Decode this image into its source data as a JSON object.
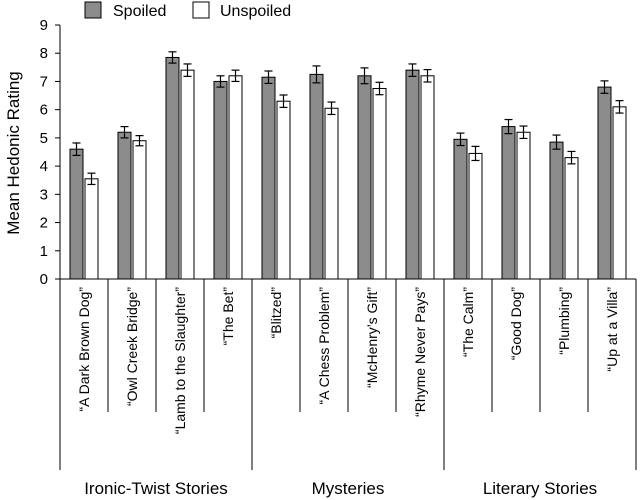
{
  "chart_data": {
    "type": "bar",
    "ylabel": "Mean Hedonic Rating",
    "ylim": [
      0,
      9
    ],
    "yticks": [
      "0",
      "1",
      "2",
      "3",
      "4",
      "5",
      "6",
      "7",
      "8",
      "9"
    ],
    "legend_placement": "top-left",
    "categories": [
      "“A Dark Brown Dog”",
      "“Owl Creek Bridge”",
      "“Lamb to the Slaughter”",
      "“The Bet”",
      "“Blitzed”",
      "“A Chess Problem”",
      "“McHenry’s Gift”",
      "“Rhyme Never Pays”",
      "“The Calm”",
      "“Good Dog”",
      "“Plumbing”",
      "“Up at a Villa”"
    ],
    "groups": [
      {
        "label": "Ironic-Twist Stories",
        "count": 4
      },
      {
        "label": "Mysteries",
        "count": 4
      },
      {
        "label": "Literary Stories",
        "count": 4
      }
    ],
    "series": [
      {
        "name": "Spoiled",
        "color": "#8c8c8c",
        "values": [
          4.6,
          5.2,
          7.85,
          7.0,
          7.15,
          7.25,
          7.2,
          7.4,
          4.95,
          5.4,
          4.85,
          6.8
        ],
        "errors": [
          0.22,
          0.2,
          0.2,
          0.2,
          0.22,
          0.3,
          0.28,
          0.22,
          0.22,
          0.25,
          0.25,
          0.22
        ]
      },
      {
        "name": "Unspoiled",
        "color": "#ffffff",
        "values": [
          3.55,
          4.9,
          7.4,
          7.2,
          6.3,
          6.05,
          6.75,
          7.2,
          4.45,
          5.2,
          4.3,
          6.1
        ],
        "errors": [
          0.2,
          0.18,
          0.22,
          0.2,
          0.22,
          0.22,
          0.22,
          0.22,
          0.25,
          0.22,
          0.22,
          0.22
        ]
      }
    ]
  }
}
